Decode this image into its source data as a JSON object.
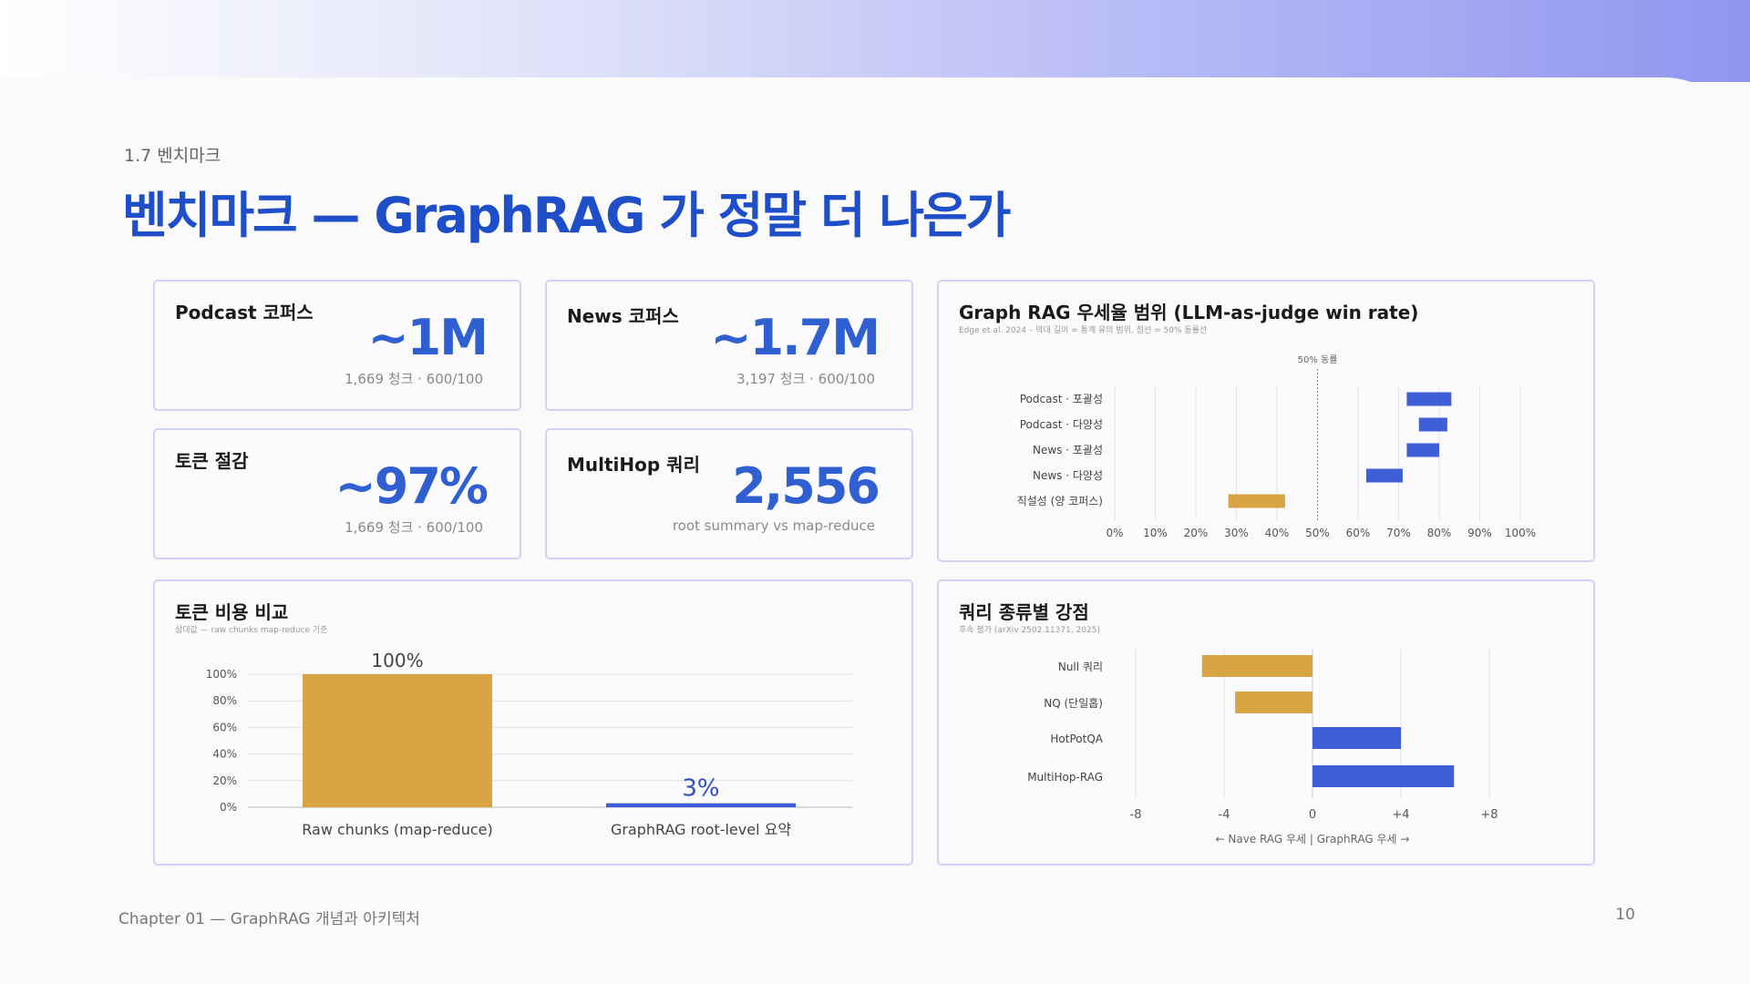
{
  "header": {
    "section": "1.7 벤치마크",
    "title": "벤치마크 — GraphRAG 가 정말 더 나은가"
  },
  "stats": [
    {
      "label": "Podcast 코퍼스",
      "value": "~1M",
      "sub": "1,669 청크 · 600/100"
    },
    {
      "label": "News 코퍼스",
      "value": "~1.7M",
      "sub": "3,197 청크 · 600/100"
    },
    {
      "label": "토큰 절감",
      "value": "~97%",
      "sub": "1,669 청크 · 600/100"
    },
    {
      "label": "MultiHop 쿼리",
      "value": "2,556",
      "sub": "root summary vs map-reduce"
    }
  ],
  "colors": {
    "blue": "#3f5fd8",
    "gold": "#d8a444",
    "title_blue": "#1f4fc8",
    "border": "#cfd3f5"
  },
  "chart_data": [
    {
      "type": "bar",
      "orientation": "horizontal-range",
      "title": "Graph RAG 우세율 범위 (LLM-as-judge win rate)",
      "subtitle": "Edge et al. 2024 – 막대 길이 = 통계 유의 범위, 점선 = 50% 동률선",
      "reference_label": "50% 동률",
      "reference_value": 50,
      "categories": [
        "Podcast · 포괄성",
        "Podcast · 다양성",
        "News · 포괄성",
        "News · 다양성",
        "직설성 (양 코퍼스)"
      ],
      "ranges": [
        [
          72,
          83
        ],
        [
          75,
          82
        ],
        [
          72,
          80
        ],
        [
          62,
          71
        ],
        [
          28,
          42
        ]
      ],
      "range_colors": [
        "#3f5fd8",
        "#3f5fd8",
        "#3f5fd8",
        "#3f5fd8",
        "#d8a444"
      ],
      "xticks": [
        "0%",
        "10%",
        "20%",
        "30%",
        "40%",
        "50%",
        "60%",
        "70%",
        "80%",
        "90%",
        "100%"
      ],
      "xlim": [
        0,
        100
      ],
      "grid": true
    },
    {
      "type": "bar",
      "title": "토큰 비용 비교",
      "subtitle": "상대값 — raw chunks map-reduce 기준",
      "categories": [
        "Raw chunks (map-reduce)",
        "GraphRAG root-level 요약"
      ],
      "values": [
        100,
        3
      ],
      "value_labels": [
        "100%",
        "3%"
      ],
      "bar_colors": [
        "#d8a444",
        "#3f5fd8"
      ],
      "yticks": [
        "0%",
        "20%",
        "40%",
        "60%",
        "80%",
        "100%"
      ],
      "ylim": [
        0,
        100
      ],
      "grid": true
    },
    {
      "type": "bar",
      "orientation": "horizontal-diverging",
      "title": "쿼리 종류별 강점",
      "subtitle": "후속 평가 (arXiv 2502.11371, 2025)",
      "categories": [
        "Null 쿼리",
        "NQ (단일홉)",
        "HotPotQA",
        "MultiHop-RAG"
      ],
      "values": [
        -5,
        -3.5,
        4,
        6.4
      ],
      "bar_colors": [
        "#d8a444",
        "#d8a444",
        "#3f5fd8",
        "#3f5fd8"
      ],
      "xticks": [
        "-8",
        "-4",
        "0",
        "+4",
        "+8"
      ],
      "xlim": [
        -8,
        8
      ],
      "xlabel": "← Nave RAG 우세  |  GraphRAG 우세 →",
      "grid": true
    }
  ],
  "footer": {
    "left": "Chapter 01 — GraphRAG 개념과 아키텍처",
    "page": "10"
  }
}
